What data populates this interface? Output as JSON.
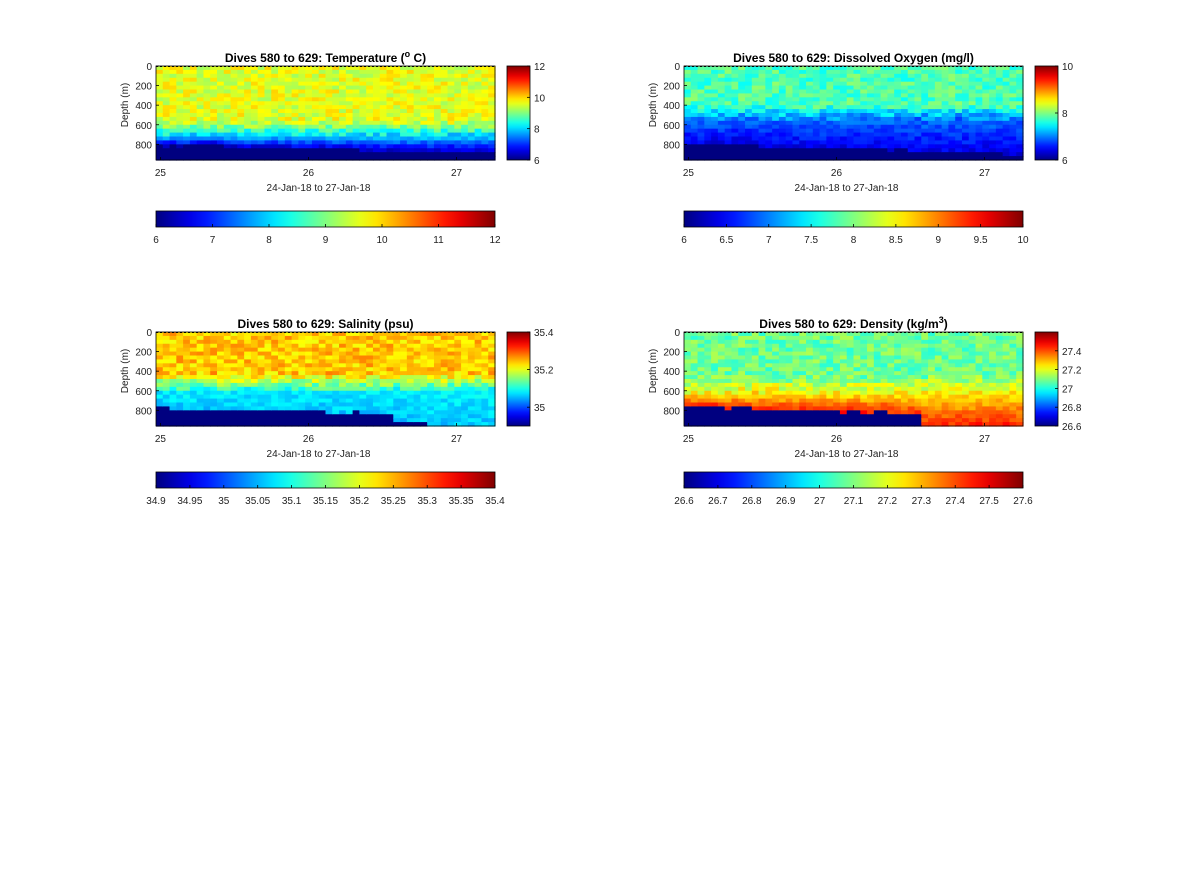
{
  "chart_data": [
    {
      "type": "heatmap",
      "title": "Dives 580 to 629: Temperature (",
      "title_sup": "o",
      "title_end": " C)",
      "xlabel": "24-Jan-18 to 27-Jan-18",
      "ylabel": "Depth (m)",
      "xlim": [
        24.97,
        27.26
      ],
      "ylim": [
        0,
        960
      ],
      "xticks": [
        25,
        26,
        27
      ],
      "xtick_labels": [
        "25",
        "26",
        "27"
      ],
      "yticks": [
        0,
        200,
        400,
        600,
        800
      ],
      "ytick_labels": [
        "0",
        "200",
        "400",
        "600",
        "800"
      ],
      "colormap": "jet",
      "clim": [
        6,
        12
      ],
      "colorbar_right_ticks": [
        6,
        8,
        10,
        12
      ],
      "colorbar_right_labels": [
        "6",
        "8",
        "10",
        "12"
      ],
      "colorbar_bottom_ticks": [
        6,
        7,
        8,
        9,
        10,
        11,
        12
      ],
      "colorbar_bottom_labels": [
        "6",
        "7",
        "8",
        "9",
        "10",
        "11",
        "12"
      ],
      "surface_value": 9.6,
      "thermocline_value": 8.0,
      "deep_value": 6.3,
      "bottom_value": 6.0,
      "top_depth": 560,
      "mid_depth": 720,
      "bottom_depth": [
        820,
        800,
        830,
        840,
        850,
        860,
        870,
        875,
        880,
        885
      ]
    },
    {
      "type": "heatmap",
      "title": "Dives 580 to 629: Dissolved Oxygen (mg/l)",
      "xlabel": "24-Jan-18 to 27-Jan-18",
      "ylabel": "Depth (m)",
      "xlim": [
        24.97,
        27.26
      ],
      "ylim": [
        0,
        960
      ],
      "xticks": [
        25,
        26,
        27
      ],
      "xtick_labels": [
        "25",
        "26",
        "27"
      ],
      "yticks": [
        0,
        200,
        400,
        600,
        800
      ],
      "ytick_labels": [
        "0",
        "200",
        "400",
        "600",
        "800"
      ],
      "colormap": "jet",
      "clim": [
        6,
        10
      ],
      "colorbar_right_ticks": [
        6,
        8,
        10
      ],
      "colorbar_right_labels": [
        "6",
        "8",
        "10"
      ],
      "colorbar_bottom_ticks": [
        6,
        6.5,
        7,
        7.5,
        8,
        8.5,
        9,
        9.5,
        10
      ],
      "colorbar_bottom_labels": [
        "6",
        "6.5",
        "7",
        "7.5",
        "8",
        "8.5",
        "9",
        "9.5",
        "10"
      ],
      "surface_value": 7.8,
      "thermocline_value": 6.9,
      "deep_value": 6.4,
      "bottom_value": 6.0,
      "top_depth": 400,
      "mid_depth": 560,
      "bottom_depth": [
        800,
        790,
        820,
        830,
        840,
        850,
        860,
        880,
        890,
        900
      ]
    },
    {
      "type": "heatmap",
      "title": "Dives 580 to 629: Salinity (psu)",
      "xlabel": "24-Jan-18 to 27-Jan-18",
      "ylabel": "Depth (m)",
      "xlim": [
        24.97,
        27.26
      ],
      "ylim": [
        0,
        960
      ],
      "xticks": [
        25,
        26,
        27
      ],
      "xtick_labels": [
        "25",
        "26",
        "27"
      ],
      "yticks": [
        0,
        200,
        400,
        600,
        800
      ],
      "ytick_labels": [
        "0",
        "200",
        "400",
        "600",
        "800"
      ],
      "colormap": "jet",
      "clim": [
        34.9,
        35.4
      ],
      "colorbar_right_ticks": [
        35,
        35.2,
        35.4
      ],
      "colorbar_right_labels": [
        "35",
        "35.2",
        "35.4"
      ],
      "colorbar_bottom_ticks": [
        34.9,
        34.95,
        35,
        35.05,
        35.1,
        35.15,
        35.2,
        35.25,
        35.3,
        35.35,
        35.4
      ],
      "colorbar_bottom_labels": [
        "34.9",
        "34.95",
        "35",
        "35.05",
        "35.1",
        "35.15",
        "35.2",
        "35.25",
        "35.3",
        "35.35",
        "35.4"
      ],
      "surface_value": 35.24,
      "thermocline_value": 35.08,
      "deep_value": 35.06,
      "bottom_value": 34.9,
      "top_depth": 420,
      "mid_depth": 620,
      "bottom_depth": [
        780,
        790,
        800,
        810,
        815,
        820,
        830,
        900,
        960,
        960
      ]
    },
    {
      "type": "heatmap",
      "title": "Dives 580 to 629: Density (kg/m",
      "title_sup": "3",
      "title_end": ")",
      "xlabel": "24-Jan-18 to 27-Jan-18",
      "ylabel": "Depth (m)",
      "xlim": [
        24.97,
        27.26
      ],
      "ylim": [
        0,
        960
      ],
      "xticks": [
        25,
        26,
        27
      ],
      "xtick_labels": [
        "25",
        "26",
        "27"
      ],
      "yticks": [
        0,
        200,
        400,
        600,
        800
      ],
      "ytick_labels": [
        "0",
        "200",
        "400",
        "600",
        "800"
      ],
      "colormap": "jet",
      "clim": [
        26.6,
        27.6
      ],
      "colorbar_right_ticks": [
        26.6,
        26.8,
        27,
        27.2,
        27.4
      ],
      "colorbar_right_labels": [
        "26.6",
        "26.8",
        "27",
        "27.2",
        "27.4"
      ],
      "colorbar_bottom_ticks": [
        26.6,
        26.7,
        26.8,
        26.9,
        27,
        27.1,
        27.2,
        27.3,
        27.4,
        27.5,
        27.6
      ],
      "colorbar_bottom_labels": [
        "26.6",
        "26.7",
        "26.8",
        "26.9",
        "27",
        "27.1",
        "27.2",
        "27.3",
        "27.4",
        "27.5",
        "27.6"
      ],
      "surface_value": 27.08,
      "thermocline_value": 27.25,
      "deep_value": 27.45,
      "bottom_value": 26.6,
      "top_depth": 440,
      "mid_depth": 640,
      "bottom_depth": [
        760,
        780,
        800,
        810,
        815,
        820,
        840,
        960,
        960,
        960
      ]
    }
  ]
}
